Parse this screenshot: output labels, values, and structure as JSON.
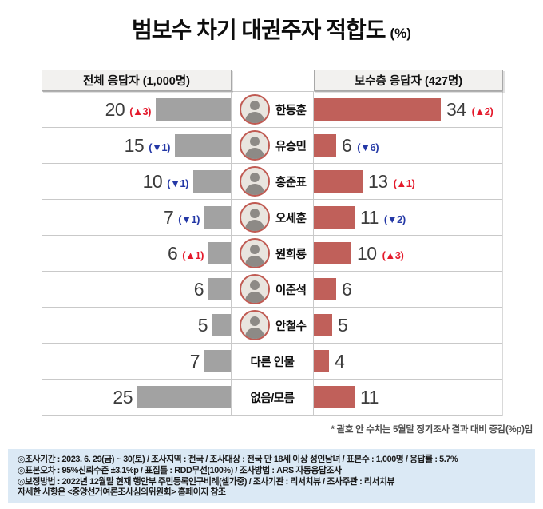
{
  "title": {
    "main": "범보수 차기 대권주자 적합도",
    "unit": "(%)"
  },
  "headers": {
    "left": "전체 응답자 (1,000명)",
    "right": "보수층 응답자 (427명)"
  },
  "footnote": "* 괄호 안 수치는 5월말 정기조사 결과 대비 증감(%p)임",
  "chart_data": {
    "type": "bar",
    "orientation": "horizontal",
    "title": "범보수 차기 대권주자 적합도 (%)",
    "value_unit": "%",
    "categories": [
      "한동훈",
      "유승민",
      "홍준표",
      "오세훈",
      "원희룡",
      "이준석",
      "안철수",
      "다른 인물",
      "없음/모름"
    ],
    "series": [
      {
        "name": "전체 응답자 (1,000명)",
        "values": [
          20,
          15,
          10,
          7,
          6,
          6,
          5,
          7,
          25
        ],
        "changes_vs_may_pct_pt": [
          "+3",
          "-1",
          "-1",
          "-1",
          "+1",
          null,
          null,
          null,
          null
        ]
      },
      {
        "name": "보수층 응답자 (427명)",
        "values": [
          34,
          6,
          13,
          11,
          10,
          6,
          5,
          4,
          11
        ],
        "changes_vs_may_pct_pt": [
          "+2",
          "-6",
          "+1",
          "-2",
          "+3",
          null,
          null,
          null,
          null
        ]
      }
    ],
    "note": "* 괄호 안 수치는 5월말 정기조사 결과 대비 증감(%p)임",
    "legend_position": "top",
    "grid": "row-separators"
  },
  "rows": [
    {
      "name": "한동훈",
      "photo": true,
      "left": {
        "value": "20",
        "change": "(▲3)",
        "dir": "up"
      },
      "right": {
        "value": "34",
        "change": "(▲2)",
        "dir": "up"
      }
    },
    {
      "name": "유승민",
      "photo": true,
      "left": {
        "value": "15",
        "change": "(▼1)",
        "dir": "down"
      },
      "right": {
        "value": "6",
        "change": "(▼6)",
        "dir": "down"
      }
    },
    {
      "name": "홍준표",
      "photo": true,
      "left": {
        "value": "10",
        "change": "(▼1)",
        "dir": "down"
      },
      "right": {
        "value": "13",
        "change": "(▲1)",
        "dir": "up"
      }
    },
    {
      "name": "오세훈",
      "photo": true,
      "left": {
        "value": "7",
        "change": "(▼1)",
        "dir": "down"
      },
      "right": {
        "value": "11",
        "change": "(▼2)",
        "dir": "down"
      }
    },
    {
      "name": "원희룡",
      "photo": true,
      "left": {
        "value": "6",
        "change": "(▲1)",
        "dir": "up"
      },
      "right": {
        "value": "10",
        "change": "(▲3)",
        "dir": "up"
      }
    },
    {
      "name": "이준석",
      "photo": true,
      "left": {
        "value": "6",
        "change": null,
        "dir": null
      },
      "right": {
        "value": "6",
        "change": null,
        "dir": null
      }
    },
    {
      "name": "안철수",
      "photo": true,
      "left": {
        "value": "5",
        "change": null,
        "dir": null
      },
      "right": {
        "value": "5",
        "change": null,
        "dir": null
      }
    },
    {
      "name": "다른 인물",
      "photo": false,
      "left": {
        "value": "7",
        "change": null,
        "dir": null
      },
      "right": {
        "value": "4",
        "change": null,
        "dir": null
      }
    },
    {
      "name": "없음/모름",
      "photo": false,
      "left": {
        "value": "25",
        "change": null,
        "dir": null
      },
      "right": {
        "value": "11",
        "change": null,
        "dir": null
      }
    }
  ],
  "source_box": {
    "lines": [
      "◎조사기간 : 2023. 6. 29(금) ~ 30(토) / 조사지역 : 전국 / 조사대상 : 전국 만 18세 이상 성인남녀 / 표본수 : 1,000명 / 응답률 : 5.7%",
      "◎표본오차 : 95%신뢰수준 ±3.1%p  / 표집틀 : RDD무선(100%) / 조사방법 : ARS 자동응답조사",
      "◎보정방법 : 2022년 12월말 현재 행안부 주민등록인구비례(셀가중) / 조사기관 : 리서치뷰 / 조사주관 : 리서치뷰",
      "자세한 사항은 <중앙선거여론조사심의위원회> 홈페이지 참조"
    ]
  },
  "colors": {
    "bar_left": "#a2a2a2",
    "bar_right": "#c0605a",
    "up": "#e4192b",
    "down": "#2438a6",
    "ring": "#c05a52",
    "hdr_bg": "#f2f1ef",
    "src_bg": "#dbe9f5"
  }
}
